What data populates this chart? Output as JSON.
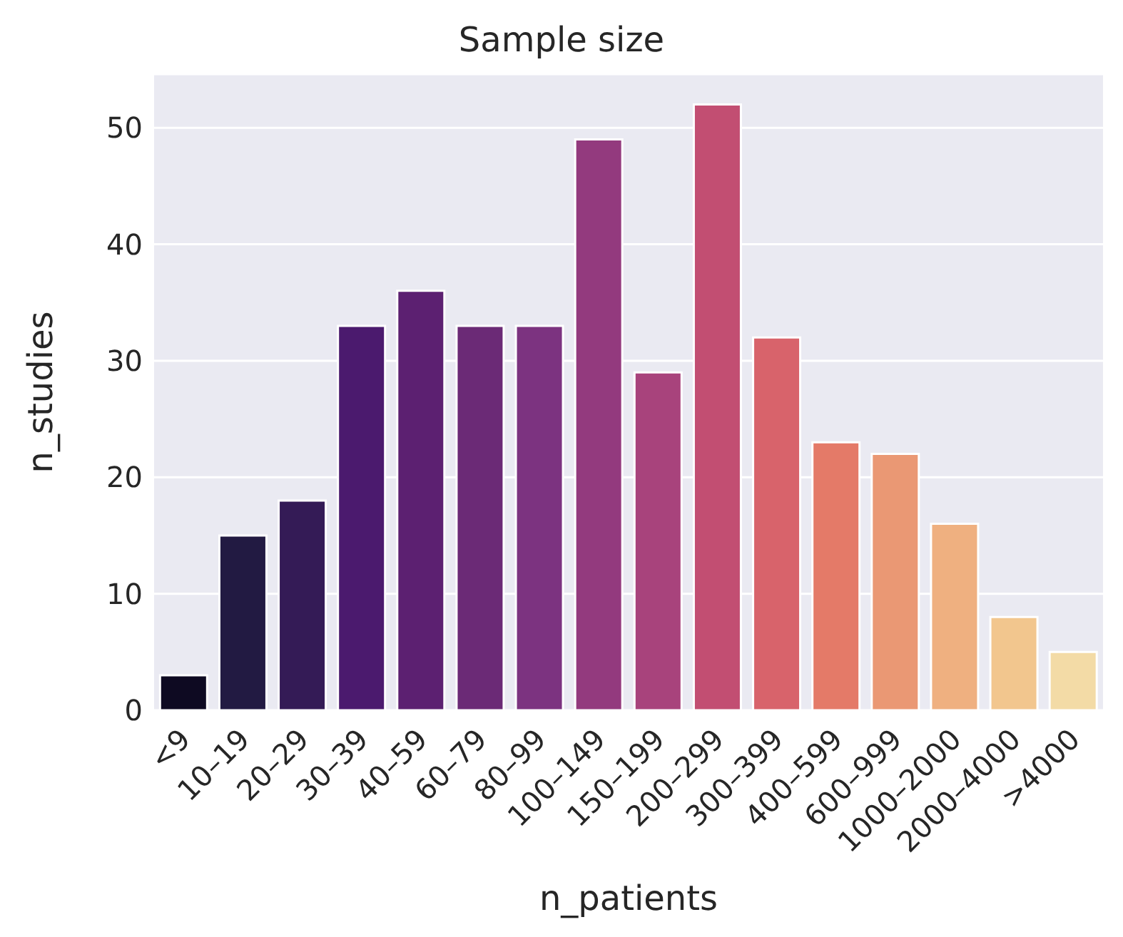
{
  "chart_data": {
    "type": "bar",
    "title": "Sample size",
    "xlabel": "n_patients",
    "ylabel": "n_studies",
    "categories": [
      "<9",
      "10–19",
      "20–29",
      "30–39",
      "40–59",
      "60–79",
      "80–99",
      "100–149",
      "150–199",
      "200–299",
      "300–399",
      "400–599",
      "600–999",
      "1000–2000",
      "2000–4000",
      ">4000"
    ],
    "values": [
      3,
      15,
      18,
      33,
      36,
      33,
      33,
      49,
      29,
      52,
      32,
      23,
      22,
      16,
      8,
      5
    ],
    "colors": [
      "#0e0a22",
      "#221a42",
      "#341b56",
      "#4b1a6e",
      "#5c2071",
      "#6b2a76",
      "#7c3380",
      "#933a7e",
      "#a8437c",
      "#c24e72",
      "#d8636b",
      "#e47a68",
      "#ea9874",
      "#efb080",
      "#f2c68e",
      "#f3dba6"
    ],
    "ylim": [
      0,
      54.6
    ],
    "yticks": [
      0,
      10,
      20,
      30,
      40,
      50
    ],
    "grid": "y"
  }
}
